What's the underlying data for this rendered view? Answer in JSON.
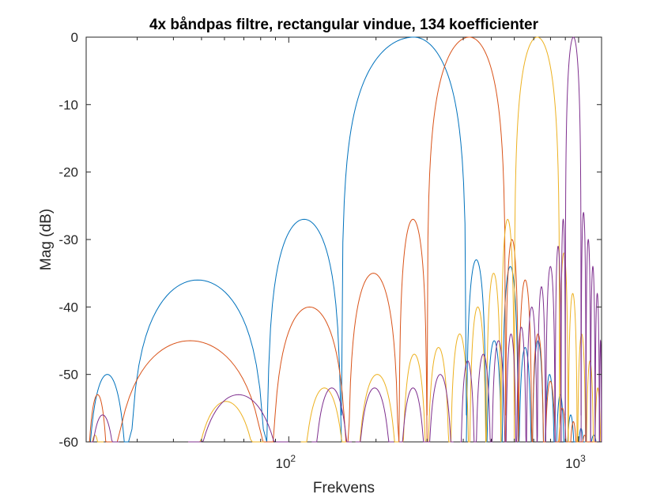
{
  "chart_data": {
    "type": "line",
    "title": "4x båndpas filtre, rectangular vindue, 134 koefficienter",
    "xlabel": "Frekvens",
    "ylabel": "Mag (dB)",
    "xscale": "log",
    "xlim": [
      20,
      1200
    ],
    "ylim": [
      -60,
      0
    ],
    "xticks": [
      {
        "value": 100,
        "base": "10",
        "exp": "2"
      },
      {
        "value": 1000,
        "base": "10",
        "exp": "3"
      }
    ],
    "yticks": [
      0,
      -10,
      -20,
      -30,
      -40,
      -50,
      -60
    ],
    "grid": false,
    "legend": "none",
    "series": [
      {
        "color": "#0072BD",
        "main_lobe": {
          "center": 270,
          "peak": 0,
          "zeros": [
            152,
            410
          ]
        },
        "lobes": [
          {
            "from": 20,
            "to": 28,
            "peak": -50
          },
          {
            "from": 28,
            "to": 84,
            "peak": -36
          },
          {
            "from": 84,
            "to": 152,
            "peak": -27
          },
          {
            "from": 410,
            "to": 480,
            "peak": -33
          },
          {
            "from": 480,
            "to": 545,
            "peak": -45
          },
          {
            "from": 545,
            "to": 620,
            "peak": -34
          },
          {
            "from": 620,
            "to": 690,
            "peak": -46
          },
          {
            "from": 690,
            "to": 760,
            "peak": -45
          },
          {
            "from": 760,
            "to": 830,
            "peak": -50
          },
          {
            "from": 830,
            "to": 900,
            "peak": -53
          },
          {
            "from": 900,
            "to": 980,
            "peak": -56
          },
          {
            "from": 980,
            "to": 1060,
            "peak": -58
          },
          {
            "from": 1060,
            "to": 1200,
            "peak": -59
          }
        ]
      },
      {
        "color": "#D95319",
        "main_lobe": {
          "center": 420,
          "peak": 0,
          "zeros": [
            300,
            560
          ]
        },
        "lobes": [
          {
            "from": 20,
            "to": 24,
            "peak": -53
          },
          {
            "from": 24,
            "to": 87,
            "peak": -45
          },
          {
            "from": 87,
            "to": 160,
            "peak": -40
          },
          {
            "from": 160,
            "to": 240,
            "peak": -35
          },
          {
            "from": 240,
            "to": 300,
            "peak": -27
          },
          {
            "from": 560,
            "to": 620,
            "peak": -30
          },
          {
            "from": 620,
            "to": 690,
            "peak": -36
          },
          {
            "from": 690,
            "to": 760,
            "peak": -44
          },
          {
            "from": 760,
            "to": 840,
            "peak": -51
          },
          {
            "from": 840,
            "to": 920,
            "peak": -55
          },
          {
            "from": 920,
            "to": 1000,
            "peak": -57
          },
          {
            "from": 1000,
            "to": 1100,
            "peak": -59
          },
          {
            "from": 1100,
            "to": 1200,
            "peak": -60
          }
        ]
      },
      {
        "color": "#EDB120",
        "main_lobe": {
          "center": 720,
          "peak": 0,
          "zeros": [
            600,
            860
          ]
        },
        "lobes": [
          {
            "from": 20,
            "to": 23,
            "peak": -59
          },
          {
            "from": 45,
            "to": 82,
            "peak": -54
          },
          {
            "from": 110,
            "to": 160,
            "peak": -52
          },
          {
            "from": 170,
            "to": 240,
            "peak": -50
          },
          {
            "from": 245,
            "to": 300,
            "peak": -47
          },
          {
            "from": 300,
            "to": 360,
            "peak": -46
          },
          {
            "from": 360,
            "to": 420,
            "peak": -44
          },
          {
            "from": 420,
            "to": 480,
            "peak": -40
          },
          {
            "from": 480,
            "to": 540,
            "peak": -35
          },
          {
            "from": 540,
            "to": 600,
            "peak": -27
          },
          {
            "from": 860,
            "to": 920,
            "peak": -32
          },
          {
            "from": 920,
            "to": 990,
            "peak": -38
          },
          {
            "from": 990,
            "to": 1060,
            "peak": -44
          },
          {
            "from": 1060,
            "to": 1130,
            "peak": -48
          },
          {
            "from": 1130,
            "to": 1200,
            "peak": -52
          }
        ]
      },
      {
        "color": "#7E2F8E",
        "main_lobe": {
          "center": 960,
          "peak": 0,
          "zeros": [
            900,
            1020
          ]
        },
        "lobes": [
          {
            "from": 20,
            "to": 26,
            "peak": -56
          },
          {
            "from": 45,
            "to": 100,
            "peak": -53
          },
          {
            "from": 120,
            "to": 165,
            "peak": -52
          },
          {
            "from": 170,
            "to": 230,
            "peak": -52
          },
          {
            "from": 240,
            "to": 300,
            "peak": -52
          },
          {
            "from": 300,
            "to": 370,
            "peak": -50
          },
          {
            "from": 390,
            "to": 440,
            "peak": -48
          },
          {
            "from": 440,
            "to": 500,
            "peak": -47
          },
          {
            "from": 500,
            "to": 560,
            "peak": -45
          },
          {
            "from": 560,
            "to": 610,
            "peak": -44
          },
          {
            "from": 610,
            "to": 660,
            "peak": -43
          },
          {
            "from": 660,
            "to": 720,
            "peak": -40
          },
          {
            "from": 720,
            "to": 770,
            "peak": -37
          },
          {
            "from": 770,
            "to": 830,
            "peak": -34
          },
          {
            "from": 830,
            "to": 870,
            "peak": -31
          },
          {
            "from": 870,
            "to": 900,
            "peak": -27
          },
          {
            "from": 1020,
            "to": 1060,
            "peak": -26
          },
          {
            "from": 1060,
            "to": 1100,
            "peak": -30
          },
          {
            "from": 1100,
            "to": 1140,
            "peak": -34
          },
          {
            "from": 1140,
            "to": 1180,
            "peak": -38
          },
          {
            "from": 1180,
            "to": 1200,
            "peak": -45
          }
        ]
      }
    ]
  }
}
